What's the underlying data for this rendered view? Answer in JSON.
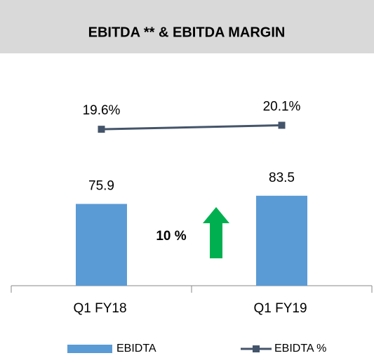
{
  "chart_data": {
    "type": "bar-line",
    "title": "EBITDA ** & EBITDA MARGIN",
    "categories": [
      "Q1 FY18",
      "Q1 FY19"
    ],
    "series": [
      {
        "name": "EBIDTA",
        "color": "#5b9bd5",
        "values": [
          75.9,
          83.5
        ]
      },
      {
        "name": "EBIDTA %",
        "color": "#44546a",
        "axis": "y2",
        "values": [
          19.6,
          20.1
        ],
        "value_labels": [
          "19.6%",
          "20.1%"
        ]
      }
    ],
    "ylim": [
      0,
      200
    ],
    "y2lim": [
      0,
      27
    ],
    "annotation": "10 %",
    "legend": "bottom"
  }
}
